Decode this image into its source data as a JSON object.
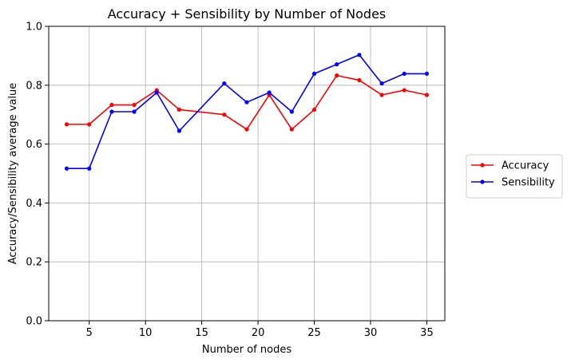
{
  "chart_data": {
    "type": "line",
    "title": "Accuracy + Sensibility by Number of Nodes",
    "xlabel": "Number of nodes",
    "ylabel": "Accuracy/Sensibility average value",
    "xlim": [
      1.4,
      36.6
    ],
    "ylim": [
      0.0,
      1.0
    ],
    "xticks": [
      5,
      10,
      15,
      20,
      25,
      30,
      35
    ],
    "xtick_labels": [
      "5",
      "10",
      "15",
      "20",
      "25",
      "30",
      "35"
    ],
    "yticks": [
      0.0,
      0.2,
      0.4,
      0.6,
      0.8,
      1.0
    ],
    "ytick_labels": [
      "0.0",
      "0.2",
      "0.4",
      "0.6",
      "0.8",
      "1.0"
    ],
    "grid": true,
    "legend_position": "outside-right",
    "series": [
      {
        "name": "Accuracy",
        "color": "#ff0000",
        "marker": "dot",
        "x": [
          3,
          5,
          7,
          9,
          11,
          13,
          17,
          19,
          21,
          23,
          25,
          27,
          29,
          31,
          33,
          35
        ],
        "y": [
          0.667,
          0.667,
          0.733,
          0.733,
          0.783,
          0.717,
          0.7,
          0.65,
          0.767,
          0.65,
          0.717,
          0.833,
          0.817,
          0.767,
          0.783,
          0.767
        ]
      },
      {
        "name": "Sensibility",
        "color": "#0000ff",
        "marker": "dot",
        "x": [
          3,
          5,
          7,
          9,
          11,
          13,
          17,
          19,
          21,
          23,
          25,
          27,
          29,
          31,
          33,
          35
        ],
        "y": [
          0.517,
          0.517,
          0.71,
          0.71,
          0.775,
          0.645,
          0.806,
          0.742,
          0.775,
          0.71,
          0.839,
          0.871,
          0.903,
          0.806,
          0.839,
          0.839
        ]
      }
    ]
  }
}
